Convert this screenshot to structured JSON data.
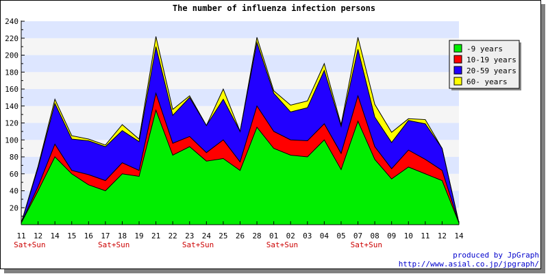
{
  "chart_data": {
    "type": "area",
    "stacked": true,
    "title": "The number of influenza infection persons",
    "xlabel": "",
    "ylabel": "",
    "ylim": [
      0,
      240
    ],
    "yticks": [
      20,
      40,
      60,
      80,
      100,
      120,
      140,
      160,
      180,
      200,
      220,
      240
    ],
    "categories": [
      "11",
      "12",
      "14",
      "15",
      "16",
      "17",
      "18",
      "19",
      "21",
      "22",
      "23",
      "24",
      "25",
      "26",
      "28",
      "01",
      "02",
      "03",
      "04",
      "05",
      "07",
      "08",
      "09",
      "10",
      "11",
      "12",
      "14"
    ],
    "weekend_markers": [
      {
        "index": 1,
        "label": "Sat+Sun"
      },
      {
        "index": 6,
        "label": "Sat+Sun"
      },
      {
        "index": 11,
        "label": "Sat+Sun"
      },
      {
        "index": 16,
        "label": "Sat+Sun"
      },
      {
        "index": 21,
        "label": "Sat+Sun"
      }
    ],
    "grid": true,
    "legend_position": "top-right",
    "series": [
      {
        "name": "-9 years",
        "color": "#00ee00",
        "values": [
          2,
          40,
          80,
          60,
          47,
          40,
          60,
          57,
          135,
          82,
          92,
          75,
          78,
          64,
          115,
          90,
          82,
          80,
          100,
          65,
          122,
          77,
          54,
          68,
          60,
          52,
          2
        ]
      },
      {
        "name": "10-19 years",
        "color": "#ff0000",
        "values": [
          0,
          5,
          15,
          4,
          12,
          12,
          13,
          7,
          20,
          14,
          12,
          10,
          22,
          10,
          25,
          20,
          18,
          19,
          19,
          19,
          30,
          15,
          12,
          20,
          17,
          12,
          0
        ]
      },
      {
        "name": "20-59 years",
        "color": "#2200ff",
        "values": [
          0,
          22,
          48,
          37,
          40,
          40,
          38,
          34,
          55,
          33,
          46,
          32,
          48,
          36,
          75,
          45,
          33,
          39,
          63,
          32,
          55,
          35,
          31,
          35,
          42,
          26,
          0
        ]
      },
      {
        "name": "60- years",
        "color": "#ffff00",
        "values": [
          0,
          2,
          5,
          4,
          2,
          2,
          7,
          3,
          12,
          7,
          2,
          0,
          12,
          0,
          6,
          3,
          8,
          8,
          8,
          2,
          14,
          15,
          12,
          2,
          5,
          0,
          0
        ]
      }
    ]
  },
  "credit": {
    "line1": "produced by JpGraph",
    "line2": "http://www.asial.co.jp/jpgraph/"
  },
  "colors": {
    "band_light": "#f5f5f5",
    "band_blue": "#dde6ff",
    "weekend_label": "#cc0000",
    "credit": "#0000cc"
  }
}
